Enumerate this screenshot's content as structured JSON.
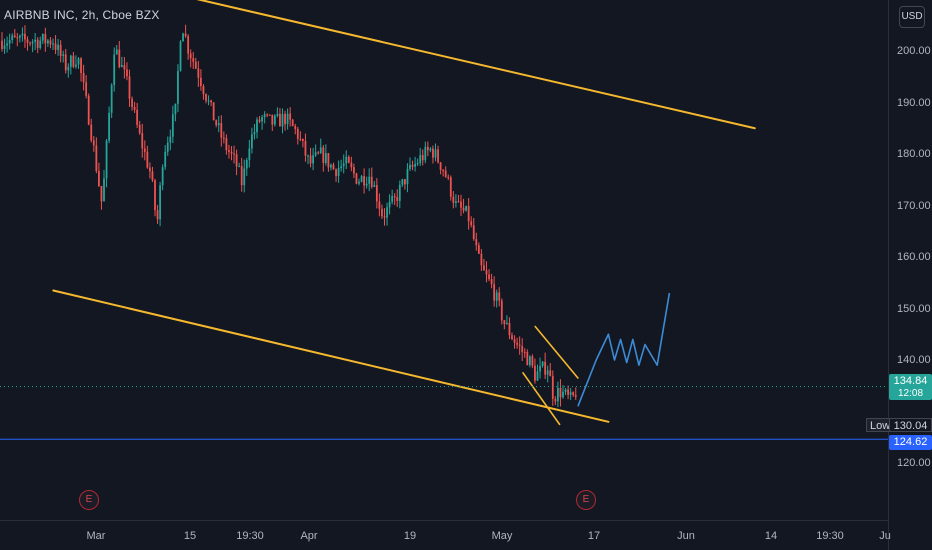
{
  "header": {
    "title": "AIRBNB INC, 2h, Cboe BZX",
    "currency": "USD"
  },
  "price_tag": {
    "value": "134.84",
    "countdown": "12:08"
  },
  "low_tag": {
    "label": "Low",
    "value": "130.04"
  },
  "hline_tag": {
    "value": "124.62"
  },
  "earnings": [
    {
      "label": "E"
    },
    {
      "label": "E"
    }
  ],
  "colors": {
    "up": "#26a69a",
    "down": "#ef5350",
    "trendline": "#f5b82e",
    "projection": "#3d8bd6",
    "hline": "#2962ff",
    "background": "#131722"
  },
  "chart_data": {
    "type": "candlestick",
    "symbol": "AIRBNB INC",
    "interval": "2h",
    "exchange": "Cboe BZX",
    "ylim": [
      110,
      210
    ],
    "y_ticks": [
      "200.00",
      "190.00",
      "180.00",
      "170.00",
      "160.00",
      "150.00",
      "140.00",
      "120.00"
    ],
    "x_ticks": [
      "Mar",
      "15",
      "19:30",
      "Apr",
      "19",
      "May",
      "17",
      "Jun",
      "14",
      "19:30",
      "Ju"
    ],
    "x_range": [
      "Feb 22",
      "Jul 1"
    ],
    "last_price": 134.84,
    "low": 130.04,
    "horizontal_line": 124.62,
    "close_path": [
      {
        "x": "Feb 22",
        "y": 202
      },
      {
        "x": "Feb 24",
        "y": 197
      },
      {
        "x": "Feb 26",
        "y": 199
      },
      {
        "x": "Feb 28",
        "y": 186
      },
      {
        "x": "Mar 2",
        "y": 170
      },
      {
        "x": "Mar 4",
        "y": 201
      },
      {
        "x": "Mar 6",
        "y": 194
      },
      {
        "x": "Mar 8",
        "y": 184
      },
      {
        "x": "Mar 10",
        "y": 176
      },
      {
        "x": "Mar 11",
        "y": 166
      },
      {
        "x": "Mar 12",
        "y": 180
      },
      {
        "x": "Mar 14",
        "y": 188
      },
      {
        "x": "Mar 15",
        "y": 206
      },
      {
        "x": "Mar 16",
        "y": 201
      },
      {
        "x": "Mar 18",
        "y": 195
      },
      {
        "x": "Mar 20",
        "y": 188
      },
      {
        "x": "Mar 22",
        "y": 182
      },
      {
        "x": "Mar 24",
        "y": 178
      },
      {
        "x": "Mar 25",
        "y": 174
      },
      {
        "x": "Mar 26",
        "y": 182
      },
      {
        "x": "Mar 28",
        "y": 187
      },
      {
        "x": "Mar 30",
        "y": 186
      },
      {
        "x": "Apr 1",
        "y": 187
      },
      {
        "x": "Apr 3",
        "y": 184
      },
      {
        "x": "Apr 5",
        "y": 178
      },
      {
        "x": "Apr 7",
        "y": 180
      },
      {
        "x": "Apr 9",
        "y": 177
      },
      {
        "x": "Apr 11",
        "y": 178
      },
      {
        "x": "Apr 13",
        "y": 175
      },
      {
        "x": "Apr 15",
        "y": 176
      },
      {
        "x": "Apr 17",
        "y": 168
      },
      {
        "x": "Apr 19",
        "y": 171
      },
      {
        "x": "Apr 21",
        "y": 176
      },
      {
        "x": "Apr 23",
        "y": 179
      },
      {
        "x": "Apr 25",
        "y": 181
      },
      {
        "x": "Apr 27",
        "y": 177
      },
      {
        "x": "Apr 29",
        "y": 170
      },
      {
        "x": "May 1",
        "y": 168
      },
      {
        "x": "May 3",
        "y": 158
      },
      {
        "x": "May 5",
        "y": 154
      },
      {
        "x": "May 7",
        "y": 147
      },
      {
        "x": "May 9",
        "y": 143
      },
      {
        "x": "May 11",
        "y": 140
      },
      {
        "x": "May 12",
        "y": 137
      },
      {
        "x": "May 14",
        "y": 139
      },
      {
        "x": "May 15",
        "y": 133
      },
      {
        "x": "May 16",
        "y": 134
      },
      {
        "x": "May 18",
        "y": 132
      },
      {
        "x": "May 19",
        "y": 134.84
      }
    ],
    "annotations": {
      "upper_channel_line": [
        {
          "x": "Mar 16",
          "y": 210.5
        },
        {
          "x": "Jun 17",
          "y": 185.0
        }
      ],
      "lower_channel_line": [
        {
          "x": "Feb 22",
          "y": 153.5
        },
        {
          "x": "May 24",
          "y": 128.0
        }
      ],
      "wedge_upper": [
        {
          "x": "May 12",
          "y": 146.5
        },
        {
          "x": "May 19",
          "y": 136.5
        }
      ],
      "wedge_lower": [
        {
          "x": "May 10",
          "y": 137.5
        },
        {
          "x": "May 16",
          "y": 127.5
        }
      ],
      "projection_path": [
        {
          "x": "May 19",
          "y": 131.0
        },
        {
          "x": "May 22",
          "y": 140.0
        },
        {
          "x": "May 24",
          "y": 145.0
        },
        {
          "x": "May 25",
          "y": 140.0
        },
        {
          "x": "May 26",
          "y": 144.0
        },
        {
          "x": "May 27",
          "y": 139.5
        },
        {
          "x": "May 28",
          "y": 144.0
        },
        {
          "x": "May 29",
          "y": 139.0
        },
        {
          "x": "May 30",
          "y": 143.0
        },
        {
          "x": "Jun 1",
          "y": 139.0
        },
        {
          "x": "Jun 3",
          "y": 153.0
        }
      ]
    }
  }
}
